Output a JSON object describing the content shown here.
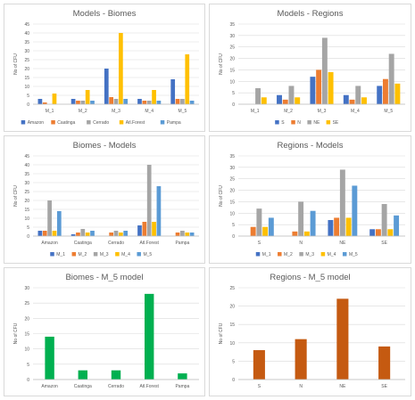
{
  "colors": {
    "blue": "#4472c4",
    "orange": "#ed7d31",
    "gray": "#a5a5a5",
    "yellow": "#ffc000",
    "lightblue": "#5b9bd5",
    "green": "#00b050",
    "rust": "#c55a11",
    "grid": "#d9d9d9",
    "text": "#595959"
  },
  "chart_data": [
    {
      "type": "bar",
      "title": "Models - Biomes",
      "ylabel": "No of CFU",
      "xlabel": "",
      "ylim": [
        0,
        45
      ],
      "yticks": [
        0,
        5,
        10,
        15,
        20,
        25,
        30,
        35,
        40,
        45
      ],
      "categories": [
        "M_1",
        "M_2",
        "M_3",
        "M_4",
        "M_5"
      ],
      "legend_position": "bottom",
      "series": [
        {
          "name": "Amazon",
          "color": "blue",
          "values": [
            3,
            3,
            20,
            3,
            14
          ]
        },
        {
          "name": "Caatinga",
          "color": "orange",
          "values": [
            1,
            2,
            4,
            2,
            3
          ]
        },
        {
          "name": "Cerrado",
          "color": "gray",
          "values": [
            0,
            2,
            3,
            2,
            3
          ]
        },
        {
          "name": "Atl.Forest",
          "color": "yellow",
          "values": [
            6,
            8,
            40,
            8,
            28
          ]
        },
        {
          "name": "Pampa",
          "color": "lightblue",
          "values": [
            0,
            2,
            3,
            2,
            2
          ]
        }
      ]
    },
    {
      "type": "bar",
      "title": "Models - Regions",
      "ylabel": "No of CFU",
      "xlabel": "",
      "ylim": [
        0,
        35
      ],
      "yticks": [
        0,
        5,
        10,
        15,
        20,
        25,
        30,
        35
      ],
      "categories": [
        "M_1",
        "M_2",
        "M_3",
        "M_4",
        "M_5"
      ],
      "legend_position": "bottom",
      "series": [
        {
          "name": "S",
          "color": "blue",
          "values": [
            0,
            4,
            12,
            4,
            8
          ]
        },
        {
          "name": "N",
          "color": "orange",
          "values": [
            0,
            2,
            15,
            2,
            11
          ]
        },
        {
          "name": "NE",
          "color": "gray",
          "values": [
            7,
            8,
            29,
            8,
            22
          ]
        },
        {
          "name": "SE",
          "color": "yellow",
          "values": [
            3,
            3,
            14,
            3,
            9
          ]
        }
      ]
    },
    {
      "type": "bar",
      "title": "Biomes - Models",
      "ylabel": "No of CFU",
      "xlabel": "",
      "ylim": [
        0,
        45
      ],
      "yticks": [
        0,
        5,
        10,
        15,
        20,
        25,
        30,
        35,
        40,
        45
      ],
      "categories": [
        "Amazon",
        "Caatinga",
        "Cerrado",
        "Atl.Forest",
        "Pampa"
      ],
      "legend_position": "bottom",
      "series": [
        {
          "name": "M_1",
          "color": "blue",
          "values": [
            3,
            1,
            0,
            6,
            0
          ]
        },
        {
          "name": "M_2",
          "color": "orange",
          "values": [
            3,
            2,
            2,
            8,
            2
          ]
        },
        {
          "name": "M_3",
          "color": "gray",
          "values": [
            20,
            4,
            3,
            40,
            3
          ]
        },
        {
          "name": "M_4",
          "color": "yellow",
          "values": [
            3,
            2,
            2,
            8,
            2
          ]
        },
        {
          "name": "M_5",
          "color": "lightblue",
          "values": [
            14,
            3,
            3,
            28,
            2
          ]
        }
      ]
    },
    {
      "type": "bar",
      "title": "Regions - Models",
      "ylabel": "No of CFU",
      "xlabel": "",
      "ylim": [
        0,
        35
      ],
      "yticks": [
        0,
        5,
        10,
        15,
        20,
        25,
        30,
        35
      ],
      "categories": [
        "S",
        "N",
        "NE",
        "SE"
      ],
      "legend_position": "bottom",
      "series": [
        {
          "name": "M_1",
          "color": "blue",
          "values": [
            0,
            0,
            7,
            3
          ]
        },
        {
          "name": "M_2",
          "color": "orange",
          "values": [
            4,
            2,
            8,
            3
          ]
        },
        {
          "name": "M_3",
          "color": "gray",
          "values": [
            12,
            15,
            29,
            14
          ]
        },
        {
          "name": "M_4",
          "color": "yellow",
          "values": [
            4,
            2,
            8,
            3
          ]
        },
        {
          "name": "M_5",
          "color": "lightblue",
          "values": [
            8,
            11,
            22,
            9
          ]
        }
      ]
    },
    {
      "type": "bar",
      "title": "Biomes - M_5 model",
      "ylabel": "No of CFU",
      "xlabel": "",
      "ylim": [
        0,
        30
      ],
      "yticks": [
        0,
        5,
        10,
        15,
        20,
        25,
        30
      ],
      "categories": [
        "Amazon",
        "Caatinga",
        "Cerrado",
        "Atl.Forest",
        "Pampa"
      ],
      "series": [
        {
          "color": "green",
          "values": [
            14,
            3,
            3,
            28,
            2
          ]
        }
      ]
    },
    {
      "type": "bar",
      "title": "Regions - M_5 model",
      "ylabel": "No of CFU",
      "xlabel": "",
      "ylim": [
        0,
        25
      ],
      "yticks": [
        0,
        5,
        10,
        15,
        20,
        25
      ],
      "categories": [
        "S",
        "N",
        "NE",
        "SE"
      ],
      "series": [
        {
          "color": "rust",
          "values": [
            8,
            11,
            22,
            9
          ]
        }
      ]
    }
  ]
}
